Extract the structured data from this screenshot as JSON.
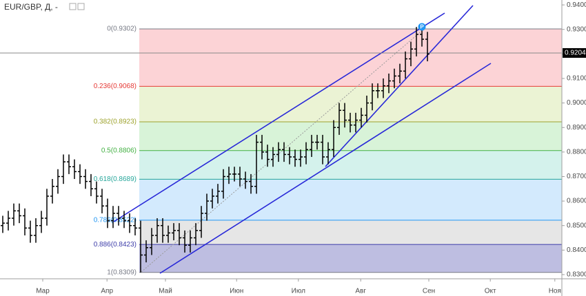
{
  "chart_data": {
    "type": "ohlc",
    "title": "EUR/GBP, Д, -",
    "color": "#000000",
    "categories": [
      null,
      null,
      null,
      null,
      null,
      null,
      null,
      null,
      null,
      null,
      null,
      null,
      null,
      null,
      null,
      null,
      null,
      null,
      null,
      null,
      null,
      null,
      null,
      null,
      null,
      null,
      null,
      null,
      null,
      null,
      null,
      null,
      null,
      null,
      null,
      null,
      null,
      null,
      null,
      null,
      null,
      null,
      null,
      null,
      null,
      null,
      null,
      null,
      null,
      null,
      null,
      null,
      null,
      null,
      null,
      null,
      null,
      null,
      null,
      null,
      null,
      null,
      null,
      null,
      null,
      null,
      null,
      null,
      null,
      null,
      null,
      null,
      null,
      null,
      null,
      null,
      null,
      null
    ],
    "open": [
      0.85,
      0.851,
      0.853,
      0.856,
      0.854,
      0.849,
      0.846,
      0.85,
      0.853,
      0.862,
      0.866,
      0.87,
      0.876,
      0.874,
      0.872,
      0.87,
      0.868,
      0.865,
      0.862,
      0.858,
      0.852,
      0.855,
      0.853,
      0.852,
      0.85,
      0.849,
      0.838,
      0.841,
      0.846,
      0.85,
      0.846,
      0.847,
      0.848,
      0.845,
      0.842,
      0.845,
      0.848,
      0.855,
      0.86,
      0.862,
      0.864,
      0.87,
      0.871,
      0.871,
      0.869,
      0.868,
      0.866,
      0.884,
      0.88,
      0.877,
      0.879,
      0.881,
      0.879,
      0.878,
      0.877,
      0.878,
      0.881,
      0.884,
      0.884,
      0.878,
      0.881,
      0.89,
      0.897,
      0.893,
      0.891,
      0.893,
      0.895,
      0.9,
      0.905,
      0.905,
      0.907,
      0.909,
      0.911,
      0.913,
      0.918,
      0.922,
      0.928,
      0.926
    ],
    "high": [
      0.854,
      0.856,
      0.859,
      0.859,
      0.857,
      0.852,
      0.853,
      0.856,
      0.865,
      0.869,
      0.873,
      0.879,
      0.879,
      0.877,
      0.875,
      0.873,
      0.871,
      0.868,
      0.865,
      0.861,
      0.858,
      0.858,
      0.856,
      0.855,
      0.853,
      0.852,
      0.844,
      0.849,
      0.853,
      0.853,
      0.85,
      0.851,
      0.851,
      0.848,
      0.848,
      0.851,
      0.858,
      0.863,
      0.865,
      0.867,
      0.873,
      0.874,
      0.874,
      0.874,
      0.872,
      0.871,
      0.887,
      0.887,
      0.883,
      0.882,
      0.884,
      0.884,
      0.882,
      0.881,
      0.881,
      0.884,
      0.887,
      0.887,
      0.887,
      0.884,
      0.893,
      0.9,
      0.9,
      0.896,
      0.896,
      0.898,
      0.903,
      0.908,
      0.908,
      0.91,
      0.912,
      0.914,
      0.916,
      0.921,
      0.925,
      0.931,
      0.9302,
      0.929
    ],
    "low": [
      0.847,
      0.848,
      0.85,
      0.851,
      0.846,
      0.843,
      0.843,
      0.847,
      0.85,
      0.859,
      0.863,
      0.867,
      0.871,
      0.869,
      0.867,
      0.865,
      0.862,
      0.859,
      0.855,
      0.849,
      0.849,
      0.85,
      0.849,
      0.847,
      0.846,
      0.8309,
      0.835,
      0.838,
      0.843,
      0.843,
      0.843,
      0.844,
      0.842,
      0.839,
      0.839,
      0.842,
      0.845,
      0.852,
      0.857,
      0.859,
      0.861,
      0.867,
      0.868,
      0.866,
      0.865,
      0.863,
      0.863,
      0.877,
      0.874,
      0.874,
      0.876,
      0.876,
      0.875,
      0.874,
      0.874,
      0.875,
      0.878,
      0.881,
      0.875,
      0.875,
      0.878,
      0.887,
      0.89,
      0.888,
      0.888,
      0.89,
      0.892,
      0.897,
      0.902,
      0.902,
      0.904,
      0.906,
      0.908,
      0.91,
      0.915,
      0.919,
      0.923,
      0.917
    ],
    "close": [
      0.851,
      0.853,
      0.856,
      0.854,
      0.849,
      0.846,
      0.85,
      0.853,
      0.862,
      0.866,
      0.87,
      0.876,
      0.874,
      0.872,
      0.87,
      0.868,
      0.865,
      0.862,
      0.858,
      0.852,
      0.855,
      0.853,
      0.852,
      0.85,
      0.849,
      0.838,
      0.841,
      0.846,
      0.85,
      0.846,
      0.847,
      0.848,
      0.845,
      0.842,
      0.845,
      0.848,
      0.855,
      0.86,
      0.862,
      0.864,
      0.87,
      0.871,
      0.871,
      0.869,
      0.868,
      0.866,
      0.884,
      0.88,
      0.877,
      0.879,
      0.881,
      0.879,
      0.878,
      0.877,
      0.878,
      0.881,
      0.884,
      0.884,
      0.878,
      0.881,
      0.89,
      0.897,
      0.893,
      0.891,
      0.893,
      0.895,
      0.9,
      0.905,
      0.905,
      0.907,
      0.909,
      0.911,
      0.913,
      0.918,
      0.922,
      0.928,
      0.926,
      0.92
    ],
    "xlim": [
      -0.5,
      101.375
    ],
    "xticks": [
      {
        "value": 7.25,
        "label": "Мар"
      },
      {
        "value": 18.9,
        "label": "Апр"
      },
      {
        "value": 29.5,
        "label": "Май"
      },
      {
        "value": 42.4,
        "label": "Июн"
      },
      {
        "value": 53.6,
        "label": "Июл"
      },
      {
        "value": 64.9,
        "label": "Авг"
      },
      {
        "value": 77.25,
        "label": "Сен"
      },
      {
        "value": 88.4,
        "label": "Окт"
      },
      {
        "value": 100.1,
        "label": "Ноя"
      }
    ],
    "ylim": [
      0.8283,
      0.942
    ],
    "yticks": [
      {
        "value": 0.83,
        "label": "0.8300"
      },
      {
        "value": 0.84,
        "label": "0.8400"
      },
      {
        "value": 0.85,
        "label": "0.8500"
      },
      {
        "value": 0.86,
        "label": "0.8600"
      },
      {
        "value": 0.87,
        "label": "0.8700"
      },
      {
        "value": 0.88,
        "label": "0.8800"
      },
      {
        "value": 0.89,
        "label": "0.8900"
      },
      {
        "value": 0.9,
        "label": "0.9000"
      },
      {
        "value": 0.91,
        "label": "0.9100"
      },
      {
        "value": 0.92,
        "label": "0.9200"
      },
      {
        "value": 0.93,
        "label": "0.9300"
      },
      {
        "value": 0.94,
        "label": "0.9400"
      }
    ],
    "last_price": {
      "value": 0.9204,
      "label": "0.9204"
    },
    "marker": {
      "index": 76,
      "label": "P",
      "color": "#2196f3"
    },
    "fib_levels": [
      {
        "label": "0(0.9302)",
        "value": 0.9302,
        "color": "#787b86",
        "fill": "rgba(242,54,69,0.22)"
      },
      {
        "label": "0.236(0.9068)",
        "value": 0.9068,
        "color": "#e53935",
        "fill": "rgba(165,200,60,0.22)"
      },
      {
        "label": "0.382(0.8923)",
        "value": 0.8923,
        "color": "#9da22c",
        "fill": "rgba(76,200,76,0.22)"
      },
      {
        "label": "0.5(0.8806)",
        "value": 0.8806,
        "color": "#43b043",
        "fill": "rgba(38,190,160,0.2)"
      },
      {
        "label": "0.618(0.8689)",
        "value": 0.8689,
        "color": "#26a69a",
        "fill": "rgba(33,150,243,0.2)"
      },
      {
        "label": "0.786(0.8522)",
        "value": 0.8522,
        "color": "#2196f3",
        "fill": "rgba(140,140,140,0.22)"
      },
      {
        "label": "0.886(0.8423)",
        "value": 0.8423,
        "color": "#3b3ba8",
        "fill": "rgba(70,70,170,0.35)"
      },
      {
        "label": "1(0.8309)",
        "value": 0.8309,
        "color": "#787b86"
      }
    ]
  }
}
